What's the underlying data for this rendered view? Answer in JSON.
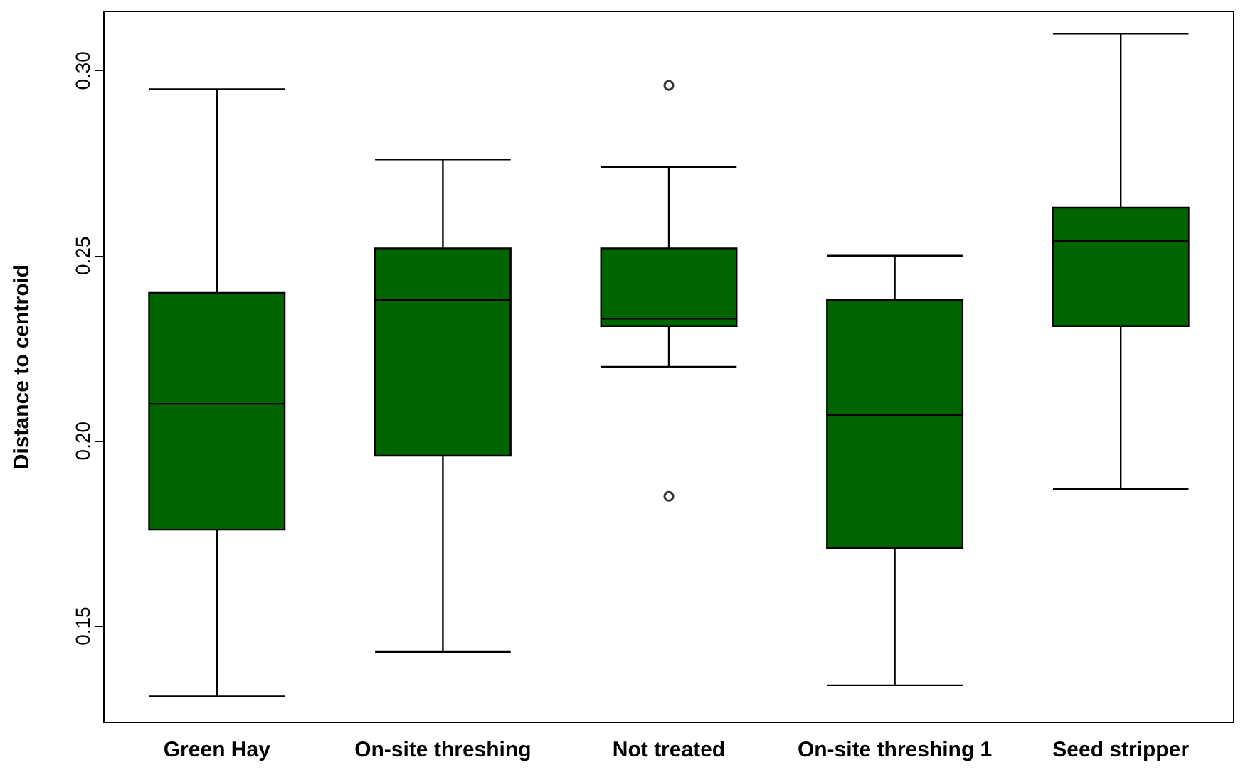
{
  "chart_data": {
    "type": "box",
    "ylabel": "Distance to centroid",
    "categories": [
      "Green Hay",
      "On-site threshing",
      "Not treated",
      "On-site threshing 1",
      "Seed stripper"
    ],
    "color": "#006400",
    "boxes": [
      {
        "low": 0.131,
        "q1": 0.176,
        "median": 0.21,
        "q3": 0.24,
        "high": 0.295
      },
      {
        "low": 0.143,
        "q1": 0.196,
        "median": 0.238,
        "q3": 0.252,
        "high": 0.276
      },
      {
        "low": 0.22,
        "q1": 0.231,
        "median": 0.233,
        "q3": 0.252,
        "high": 0.274,
        "outliers": [
          0.296,
          0.185
        ]
      },
      {
        "low": 0.134,
        "q1": 0.171,
        "median": 0.207,
        "q3": 0.238,
        "high": 0.25
      },
      {
        "low": 0.187,
        "q1": 0.231,
        "median": 0.254,
        "q3": 0.263,
        "high": 0.31
      }
    ],
    "ylim": [
      0.124,
      0.316
    ],
    "yticks": [
      {
        "value": 0.15,
        "label": "0.15"
      },
      {
        "value": 0.2,
        "label": "0.20"
      },
      {
        "value": 0.25,
        "label": "0.25"
      },
      {
        "value": 0.3,
        "label": "0.30"
      }
    ],
    "grid": false
  }
}
